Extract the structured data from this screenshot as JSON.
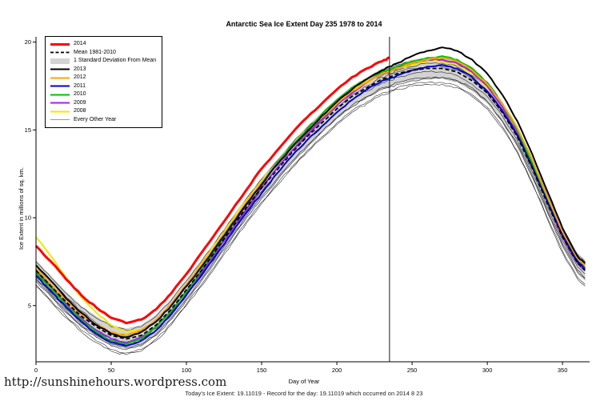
{
  "page": {
    "watermark": "http://sunshinehours.wordpress.com",
    "footer": "Today's Ice Extent: 19.11019 - Record for the day: 19.11019 which occurred on 2014 8 23"
  },
  "chart_data": {
    "type": "line",
    "title": "Antarctic Sea Ice Extent Day 235 1978 to 2014",
    "xlabel": "Day of Year",
    "ylabel": "Ice Extent in millions of sq. km.",
    "xlim": [
      0,
      368
    ],
    "ylim": [
      1.8,
      20.3
    ],
    "xticks": [
      0,
      50,
      100,
      150,
      200,
      250,
      300,
      350
    ],
    "yticks": [
      5,
      10,
      15,
      20
    ],
    "vline_x": 235,
    "today_value": 19.11019,
    "record_value": 19.11019,
    "record_date": "2014 8 23",
    "x": [
      0,
      10,
      20,
      30,
      40,
      50,
      60,
      70,
      80,
      90,
      100,
      110,
      120,
      130,
      140,
      150,
      160,
      170,
      180,
      190,
      200,
      210,
      220,
      230,
      235,
      240,
      250,
      260,
      270,
      280,
      290,
      300,
      310,
      320,
      330,
      340,
      350,
      360,
      365
    ],
    "band": {
      "name": "1 Standard Deviation From Mean",
      "color": "#d3d3d3",
      "upper": [
        7.6,
        6.7,
        5.8,
        5.0,
        4.4,
        3.9,
        3.7,
        3.9,
        4.5,
        5.4,
        6.5,
        7.6,
        8.8,
        10.0,
        11.2,
        12.3,
        13.3,
        14.3,
        15.2,
        16.0,
        16.8,
        17.5,
        18.0,
        18.5,
        18.6,
        18.8,
        19.0,
        19.1,
        19.1,
        18.9,
        18.4,
        17.7,
        16.6,
        15.2,
        13.4,
        11.4,
        9.5,
        8.0,
        7.6
      ],
      "lower": [
        6.4,
        5.5,
        4.6,
        3.8,
        3.2,
        2.7,
        2.5,
        2.7,
        3.3,
        4.2,
        5.3,
        6.4,
        7.6,
        8.8,
        10.0,
        11.1,
        12.1,
        13.1,
        14.0,
        14.8,
        15.6,
        16.3,
        16.8,
        17.3,
        17.4,
        17.6,
        17.8,
        17.9,
        17.9,
        17.7,
        17.2,
        16.5,
        15.4,
        14.0,
        12.2,
        10.2,
        8.3,
        6.8,
        6.4
      ]
    },
    "series": [
      {
        "name": "2014",
        "color": "#ff0000",
        "width": 3,
        "dash": null,
        "values": [
          8.4,
          7.5,
          6.5,
          5.6,
          4.9,
          4.3,
          4.0,
          4.2,
          4.8,
          5.7,
          6.8,
          8.0,
          9.2,
          10.4,
          11.6,
          12.8,
          13.8,
          14.8,
          15.7,
          16.5,
          17.3,
          18.0,
          18.5,
          18.9,
          19.11,
          null,
          null,
          null,
          null,
          null,
          null,
          null,
          null,
          null,
          null,
          null,
          null,
          null,
          null
        ]
      },
      {
        "name": "Mean 1981-2010",
        "color": "#000000",
        "width": 1.8,
        "dash": "5,3",
        "values": [
          7.0,
          6.1,
          5.2,
          4.4,
          3.8,
          3.3,
          3.1,
          3.3,
          3.9,
          4.8,
          5.9,
          7.0,
          8.2,
          9.4,
          10.6,
          11.7,
          12.7,
          13.7,
          14.6,
          15.4,
          16.2,
          16.9,
          17.4,
          17.9,
          18.0,
          18.2,
          18.4,
          18.5,
          18.5,
          18.3,
          17.8,
          17.1,
          16.0,
          14.6,
          12.8,
          10.8,
          8.9,
          7.4,
          7.0
        ]
      },
      {
        "name": "2013",
        "color": "#000000",
        "width": 2,
        "dash": null,
        "values": [
          7.3,
          6.4,
          5.4,
          4.6,
          3.9,
          3.4,
          3.2,
          3.5,
          4.1,
          5.0,
          6.1,
          7.2,
          8.4,
          9.6,
          10.8,
          11.9,
          13.0,
          14.0,
          14.9,
          15.8,
          16.6,
          17.3,
          17.9,
          18.4,
          18.6,
          18.8,
          19.2,
          19.5,
          19.7,
          19.5,
          19.0,
          18.2,
          17.0,
          15.5,
          13.6,
          11.5,
          9.4,
          7.8,
          7.4
        ]
      },
      {
        "name": "2012",
        "color": "#ffa500",
        "width": 2,
        "dash": null,
        "values": [
          7.1,
          6.2,
          5.3,
          4.5,
          3.9,
          3.5,
          3.3,
          3.6,
          4.2,
          5.1,
          6.2,
          7.3,
          8.5,
          9.7,
          10.9,
          12.0,
          13.0,
          14.0,
          14.9,
          15.7,
          16.5,
          17.2,
          17.7,
          18.2,
          18.3,
          18.5,
          18.8,
          19.0,
          19.1,
          18.9,
          18.4,
          17.6,
          16.5,
          15.1,
          13.3,
          11.2,
          9.2,
          7.7,
          7.3
        ]
      },
      {
        "name": "2011",
        "color": "#0000cd",
        "width": 2,
        "dash": null,
        "values": [
          6.7,
          5.8,
          4.9,
          4.1,
          3.4,
          2.9,
          2.7,
          3.0,
          3.6,
          4.5,
          5.6,
          6.7,
          7.9,
          9.1,
          10.3,
          11.4,
          12.5,
          13.5,
          14.4,
          15.2,
          16.0,
          16.7,
          17.3,
          17.8,
          17.9,
          18.1,
          18.4,
          18.6,
          18.7,
          18.5,
          18.0,
          17.2,
          16.1,
          14.7,
          12.9,
          10.9,
          9.0,
          7.5,
          7.1
        ]
      },
      {
        "name": "2010",
        "color": "#00c000",
        "width": 2,
        "dash": null,
        "values": [
          6.9,
          6.0,
          5.0,
          4.2,
          3.5,
          3.0,
          2.8,
          3.1,
          3.8,
          4.7,
          5.8,
          7.0,
          8.2,
          9.5,
          10.8,
          12.0,
          13.1,
          14.1,
          15.0,
          15.9,
          16.7,
          17.4,
          17.9,
          18.3,
          18.4,
          18.6,
          18.9,
          19.1,
          19.2,
          19.0,
          18.5,
          17.7,
          16.5,
          15.0,
          13.1,
          11.0,
          9.0,
          7.5,
          7.1
        ]
      },
      {
        "name": "2009",
        "color": "#a020f0",
        "width": 2,
        "dash": null,
        "values": [
          7.0,
          6.1,
          5.1,
          4.3,
          3.6,
          3.1,
          2.9,
          3.2,
          3.8,
          4.7,
          5.8,
          6.9,
          8.1,
          9.3,
          10.5,
          11.7,
          12.8,
          13.8,
          14.7,
          15.6,
          16.4,
          17.1,
          17.7,
          18.2,
          18.3,
          18.5,
          18.8,
          19.0,
          19.0,
          18.8,
          18.3,
          17.5,
          16.3,
          14.8,
          13.0,
          10.9,
          8.9,
          7.4,
          7.0
        ]
      },
      {
        "name": "2008",
        "color": "#f0e800",
        "width": 2,
        "dash": null,
        "values": [
          8.9,
          7.8,
          6.6,
          5.5,
          4.6,
          3.9,
          3.5,
          3.6,
          4.2,
          5.1,
          6.2,
          7.4,
          8.6,
          9.8,
          11.0,
          12.1,
          13.1,
          14.1,
          15.0,
          15.8,
          16.6,
          17.2,
          17.8,
          18.2,
          18.3,
          18.5,
          18.7,
          18.9,
          18.9,
          18.7,
          18.2,
          17.4,
          16.3,
          14.9,
          13.1,
          11.1,
          9.2,
          7.7,
          7.3
        ]
      }
    ],
    "other_years": {
      "name": "Every Other Year",
      "color": "#1a1a1a",
      "width": 0.55,
      "lines": [
        [
          6.5,
          5.6,
          4.7,
          3.9,
          3.3,
          2.8,
          2.6,
          2.8,
          3.4,
          4.3,
          5.4,
          6.5,
          7.7,
          8.9,
          10.1,
          11.2,
          12.2,
          13.2,
          14.1,
          14.9,
          15.7,
          16.4,
          16.9,
          17.4,
          17.5,
          17.7,
          17.9,
          18.0,
          18.0,
          17.8,
          17.3,
          16.6,
          15.5,
          14.1,
          12.3,
          10.3,
          8.4,
          6.9,
          6.5
        ],
        [
          7.3,
          6.4,
          5.5,
          4.7,
          4.0,
          3.5,
          3.3,
          3.5,
          4.1,
          5.0,
          6.1,
          7.2,
          8.3,
          9.5,
          10.7,
          11.8,
          12.8,
          13.8,
          14.7,
          15.5,
          16.3,
          17.0,
          17.5,
          18.0,
          18.1,
          18.3,
          18.5,
          18.6,
          18.6,
          18.4,
          17.9,
          17.1,
          16.0,
          14.6,
          12.8,
          10.8,
          8.9,
          7.4,
          7.0
        ],
        [
          6.2,
          5.3,
          4.4,
          3.6,
          3.0,
          2.5,
          2.3,
          2.5,
          3.1,
          4.0,
          5.1,
          6.2,
          7.4,
          8.6,
          9.8,
          10.9,
          11.9,
          12.9,
          13.8,
          14.6,
          15.4,
          16.1,
          16.6,
          17.1,
          17.2,
          17.4,
          17.6,
          17.7,
          17.7,
          17.5,
          17.0,
          16.3,
          15.2,
          13.8,
          12.0,
          10.0,
          8.1,
          6.6,
          6.2
        ],
        [
          7.5,
          6.6,
          5.7,
          4.9,
          4.3,
          3.8,
          3.6,
          3.8,
          4.4,
          5.3,
          6.4,
          7.5,
          8.7,
          9.9,
          11.1,
          12.2,
          13.2,
          14.2,
          15.1,
          15.9,
          16.7,
          17.4,
          17.9,
          18.4,
          18.5,
          18.7,
          18.9,
          19.0,
          19.0,
          18.8,
          18.3,
          17.6,
          16.5,
          15.1,
          13.3,
          11.3,
          9.4,
          7.9,
          7.5
        ],
        [
          6.8,
          5.9,
          5.0,
          4.2,
          3.6,
          3.1,
          2.9,
          3.1,
          3.7,
          4.6,
          5.7,
          6.8,
          8.0,
          9.2,
          10.4,
          11.5,
          12.5,
          13.5,
          14.4,
          15.2,
          16.0,
          16.7,
          17.2,
          17.7,
          17.8,
          18.0,
          18.2,
          18.3,
          18.3,
          18.1,
          17.6,
          16.9,
          15.8,
          14.4,
          12.6,
          10.6,
          8.7,
          7.2,
          6.8
        ],
        [
          6.1,
          5.2,
          4.3,
          3.5,
          2.9,
          2.4,
          2.2,
          2.4,
          3.0,
          3.9,
          5.0,
          6.1,
          7.3,
          8.5,
          9.7,
          10.8,
          11.8,
          12.8,
          13.7,
          14.5,
          15.3,
          16.0,
          16.5,
          17.0,
          17.1,
          17.3,
          17.5,
          17.6,
          17.6,
          17.4,
          16.9,
          16.2,
          15.1,
          13.7,
          11.9,
          9.9,
          8.0,
          6.5,
          6.1
        ],
        [
          6.6,
          5.7,
          4.8,
          4.0,
          3.4,
          2.9,
          2.7,
          3.0,
          3.6,
          4.5,
          5.6,
          6.8,
          8.0,
          9.3,
          10.5,
          11.7,
          12.8,
          13.8,
          14.8,
          15.6,
          16.4,
          17.1,
          17.7,
          18.1,
          18.2,
          18.4,
          18.6,
          18.8,
          18.8,
          18.6,
          18.1,
          17.4,
          16.3,
          14.9,
          13.1,
          11.1,
          9.1,
          7.6,
          7.2
        ],
        [
          6.4,
          5.5,
          4.6,
          3.8,
          3.2,
          2.7,
          2.5,
          2.7,
          3.3,
          4.2,
          5.3,
          6.4,
          7.6,
          8.8,
          10.0,
          11.1,
          12.1,
          13.1,
          14.0,
          14.9,
          15.7,
          16.3,
          16.9,
          17.3,
          17.4,
          17.6,
          17.8,
          17.9,
          18.0,
          17.8,
          17.4,
          16.6,
          15.5,
          14.2,
          12.4,
          10.4,
          8.5,
          7.0,
          6.6
        ]
      ]
    }
  }
}
